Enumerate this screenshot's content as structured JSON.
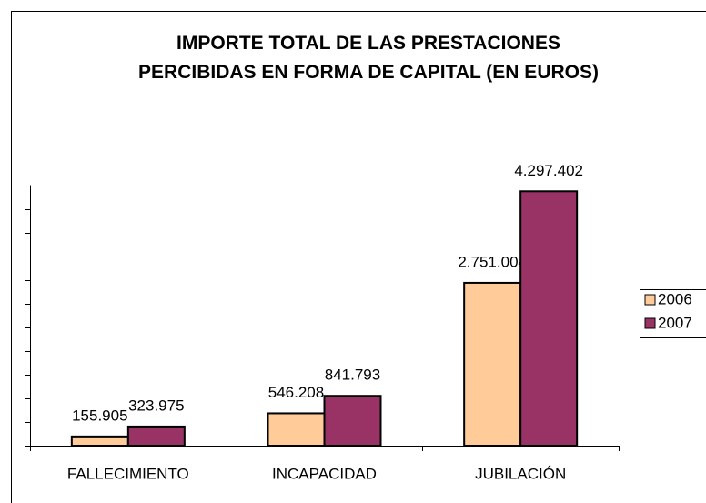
{
  "chart_data": {
    "type": "bar",
    "title": "IMPORTE TOTAL DE LAS PRESTACIONES PERCIBIDAS EN FORMA DE CAPITAL (EN EUROS)",
    "categories": [
      "FALLECIMIENTO",
      "INCAPACIDAD",
      "JUBILACIÓN"
    ],
    "series": [
      {
        "name": "2006",
        "color": "#FFCC99",
        "values": [
          155905,
          546208,
          2751004
        ],
        "value_labels": [
          "155.905",
          "546.208",
          "2.751.004"
        ]
      },
      {
        "name": "2007",
        "color": "#993366",
        "values": [
          323975,
          841793,
          4297402
        ],
        "value_labels": [
          "323.975",
          "841.793",
          "4.297.402"
        ]
      }
    ],
    "ylim": [
      0,
      4400000
    ],
    "yticks": [
      0,
      400000,
      800000,
      1200000,
      1600000,
      2000000,
      2400000,
      2800000,
      3200000,
      3600000,
      4000000,
      4400000
    ]
  }
}
